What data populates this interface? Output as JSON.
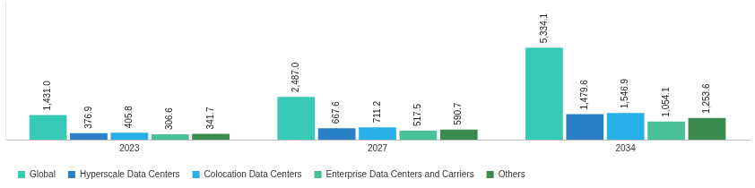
{
  "chart_data": {
    "type": "bar",
    "categories": [
      "2023",
      "2027",
      "2034"
    ],
    "series": [
      {
        "name": "Global",
        "color": "#36c9b6",
        "values": [
          1431.0,
          2487.0,
          5334.1
        ],
        "value_labels": [
          "1,431.0",
          "2,487.0",
          "5,334.1"
        ]
      },
      {
        "name": "Hyperscale Data Centers",
        "color": "#2a7fc6",
        "values": [
          376.9,
          667.6,
          1479.6
        ],
        "value_labels": [
          "376.9",
          "667.6",
          "1,479.6"
        ]
      },
      {
        "name": "Colocation Data Centers",
        "color": "#27b1e8",
        "values": [
          405.8,
          711.2,
          1546.9
        ],
        "value_labels": [
          "405.8",
          "711.2",
          "1,546.9"
        ]
      },
      {
        "name": "Enterprise Data Centers and Carriers",
        "color": "#48c09a",
        "values": [
          306.6,
          517.5,
          1054.1
        ],
        "value_labels": [
          "306.6",
          "517.5",
          "1,054.1"
        ]
      },
      {
        "name": "Others",
        "color": "#3a8a50",
        "values": [
          341.7,
          590.7,
          1253.6
        ],
        "value_labels": [
          "341.7",
          "590.7",
          "1,253.6"
        ]
      }
    ],
    "ylim": [
      0,
      8000
    ],
    "grid": false,
    "legend": "bottom",
    "data_labels": true,
    "tick_labels": "x"
  }
}
